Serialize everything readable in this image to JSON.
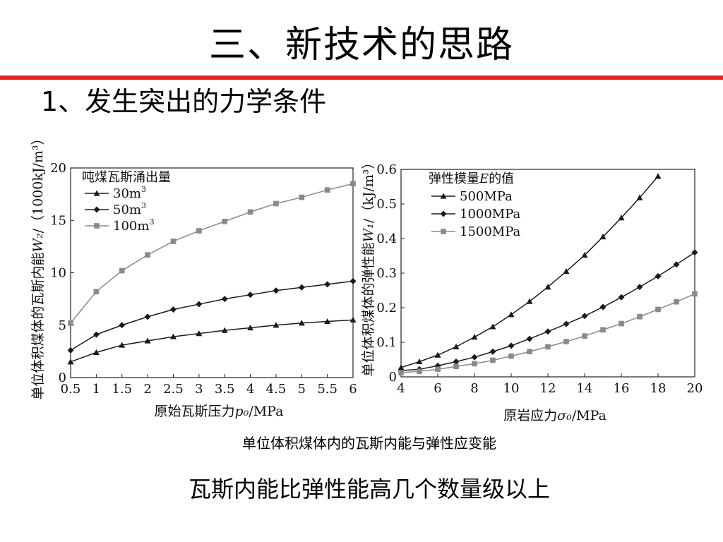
{
  "slide": {
    "title": "三、新技术的思路",
    "subtitle": "1、发生突出的力学条件",
    "caption": "单位体积煤体内的瓦斯内能与弹性应变能",
    "conclusion": "瓦斯内能比弹性能高几个数量级以上"
  },
  "colors": {
    "accent_rule": "#e8231e",
    "series_dark": "#1a1a1a",
    "series_gray": "#8a8a8a"
  },
  "chart_data": [
    {
      "type": "line",
      "xlabel": "原始瓦斯压力p₀/MPa",
      "ylabel": "单位体积煤体的瓦斯内能W₂/（1000kJ/m³）",
      "xlim": [
        0.5,
        6
      ],
      "ylim": [
        0,
        20
      ],
      "xticks": [
        "0.5",
        "1",
        "1.5",
        "2",
        "2.5",
        "3",
        "3.5",
        "4",
        "4.5",
        "5",
        "5.5",
        "6"
      ],
      "yticks": [
        "0",
        "5",
        "10",
        "15",
        "20"
      ],
      "x": [
        0.5,
        1,
        1.5,
        2,
        2.5,
        3,
        3.5,
        4,
        4.5,
        5,
        5.5,
        6
      ],
      "legend_title": "吨煤瓦斯涌出量",
      "legend_position": "top-left",
      "series": [
        {
          "name": "30m³",
          "marker": "triangle",
          "values": [
            1.5,
            2.4,
            3.1,
            3.5,
            3.9,
            4.2,
            4.5,
            4.75,
            5.0,
            5.2,
            5.35,
            5.5
          ]
        },
        {
          "name": "50m³",
          "marker": "diamond",
          "values": [
            2.6,
            4.1,
            5.0,
            5.8,
            6.5,
            7.0,
            7.5,
            7.9,
            8.3,
            8.6,
            8.9,
            9.2
          ]
        },
        {
          "name": "100m³",
          "marker": "square",
          "values": [
            5.2,
            8.2,
            10.2,
            11.7,
            13.0,
            14.0,
            14.9,
            15.8,
            16.6,
            17.2,
            17.9,
            18.5
          ]
        }
      ]
    },
    {
      "type": "line",
      "xlabel": "原岩应力σ₀/MPa",
      "ylabel": "单位体积煤体的弹性能W₁/（kJ/m³）",
      "xlim": [
        4,
        20
      ],
      "ylim": [
        0,
        0.6
      ],
      "xticks": [
        "4",
        "6",
        "8",
        "10",
        "12",
        "14",
        "16",
        "18",
        "20"
      ],
      "yticks": [
        "0",
        "0.1",
        "0.2",
        "0.3",
        "0.4",
        "0.5",
        "0.6"
      ],
      "x": [
        4,
        5,
        6,
        7,
        8,
        9,
        10,
        11,
        12,
        13,
        14,
        15,
        16,
        17,
        18,
        19,
        20
      ],
      "legend_title": "弹性模量E的值",
      "legend_position": "top-left",
      "series": [
        {
          "name": "500MPa",
          "marker": "triangle",
          "values": [
            0.027,
            0.044,
            0.063,
            0.087,
            0.115,
            0.145,
            0.18,
            0.218,
            0.26,
            0.305,
            0.352,
            0.405,
            0.46,
            0.518,
            0.58,
            null,
            null
          ]
        },
        {
          "name": "1000MPa",
          "marker": "diamond",
          "values": [
            0.018,
            0.022,
            0.032,
            0.044,
            0.057,
            0.073,
            0.09,
            0.11,
            0.131,
            0.153,
            0.176,
            0.202,
            0.23,
            0.26,
            0.291,
            0.325,
            0.36
          ]
        },
        {
          "name": "1500MPa",
          "marker": "square",
          "values": [
            0.012,
            0.016,
            0.022,
            0.03,
            0.038,
            0.048,
            0.06,
            0.073,
            0.087,
            0.102,
            0.118,
            0.136,
            0.154,
            0.174,
            0.195,
            0.217,
            0.24
          ]
        }
      ]
    }
  ]
}
